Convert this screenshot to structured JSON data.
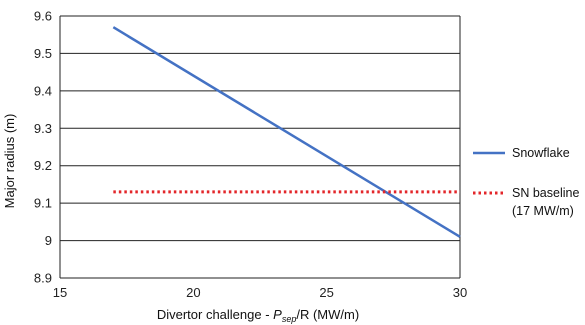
{
  "chart_data": {
    "type": "line",
    "xlabel": {
      "prefix": "Divertor challenge - ",
      "var_main": "P",
      "var_sub": "sep",
      "suffix": "/R (MW/m)"
    },
    "ylabel": "Major radius (m)",
    "xlim": [
      15,
      30
    ],
    "ylim": [
      8.9,
      9.6
    ],
    "x_ticks": [
      15,
      20,
      25,
      30
    ],
    "y_ticks": [
      8.9,
      9.0,
      9.1,
      9.2,
      9.3,
      9.4,
      9.5,
      9.6
    ],
    "x_tick_labels": [
      "15",
      "20",
      "25",
      "30"
    ],
    "y_tick_labels": [
      "8.9",
      "9",
      "9.1",
      "9.2",
      "9.3",
      "9.4",
      "9.5",
      "9.6"
    ],
    "grid": "horizontal",
    "legend_position": "right",
    "series": [
      {
        "name": "Snowflake",
        "color": "#4472C4",
        "style": "solid",
        "x": [
          17,
          30
        ],
        "y": [
          9.57,
          9.01
        ]
      },
      {
        "name_lines": [
          "SN baseline",
          "(17 MW/m)"
        ],
        "color": "#E3262A",
        "style": "dotted",
        "x": [
          17,
          30
        ],
        "y": [
          9.13,
          9.13
        ]
      }
    ]
  }
}
